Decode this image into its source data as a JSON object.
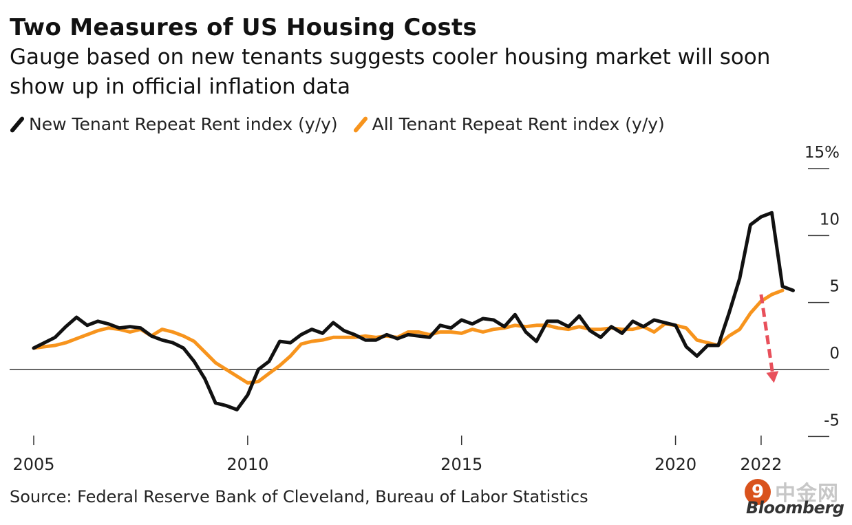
{
  "title": "Two Measures of US Housing Costs",
  "subtitle": "Gauge based on new tenants suggests cooler housing market will soon show up in official inflation data",
  "source": "Source: Federal Reserve Bank of Cleveland, Bureau of Labor Statistics",
  "logo": {
    "cn_text": "中金网",
    "en_text": "Bloomberg",
    "badge_glyph": "9"
  },
  "colors": {
    "new_tenant": "#111111",
    "all_tenant": "#F7941D",
    "arrow": "#E8505B",
    "zero_line": "#333333"
  },
  "chart_data": {
    "type": "line",
    "title": "Two Measures of US Housing Costs",
    "ylabel": "",
    "xlabel": "",
    "xlim": [
      2005,
      2023
    ],
    "ylim": [
      -5,
      15
    ],
    "y_ticks": [
      -5,
      0,
      5,
      10,
      15
    ],
    "y_tick_labels": [
      "-5",
      "0",
      "5",
      "10",
      "15%"
    ],
    "x_ticks": [
      2005,
      2010,
      2015,
      2020,
      2022
    ],
    "x_tick_labels": [
      "2005",
      "2010",
      "2015",
      "2020",
      "2022"
    ],
    "legend": [
      {
        "name": "New Tenant Repeat Rent index (y/y)",
        "color": "#111111"
      },
      {
        "name": "All Tenant Repeat Rent index (y/y)",
        "color": "#F7941D"
      }
    ],
    "series": [
      {
        "name": "New Tenant Repeat Rent index (y/y)",
        "color": "#111111",
        "x": [
          2005.0,
          2005.25,
          2005.5,
          2005.75,
          2006.0,
          2006.25,
          2006.5,
          2006.75,
          2007.0,
          2007.25,
          2007.5,
          2007.75,
          2008.0,
          2008.25,
          2008.5,
          2008.75,
          2009.0,
          2009.25,
          2009.5,
          2009.75,
          2010.0,
          2010.25,
          2010.5,
          2010.75,
          2011.0,
          2011.25,
          2011.5,
          2011.75,
          2012.0,
          2012.25,
          2012.5,
          2012.75,
          2013.0,
          2013.25,
          2013.5,
          2013.75,
          2014.0,
          2014.25,
          2014.5,
          2014.75,
          2015.0,
          2015.25,
          2015.5,
          2015.75,
          2016.0,
          2016.25,
          2016.5,
          2016.75,
          2017.0,
          2017.25,
          2017.5,
          2017.75,
          2018.0,
          2018.25,
          2018.5,
          2018.75,
          2019.0,
          2019.25,
          2019.5,
          2019.75,
          2020.0,
          2020.25,
          2020.5,
          2020.75,
          2021.0,
          2021.25,
          2021.5,
          2021.75,
          2022.0,
          2022.25,
          2022.5,
          2022.75
        ],
        "values": [
          1.6,
          2.0,
          2.4,
          3.2,
          3.9,
          3.3,
          3.6,
          3.4,
          3.1,
          3.2,
          3.1,
          2.5,
          2.2,
          2.0,
          1.6,
          0.6,
          -0.7,
          -2.5,
          -2.7,
          -3.0,
          -1.9,
          0.0,
          0.6,
          2.1,
          2.0,
          2.6,
          3.0,
          2.7,
          3.5,
          2.9,
          2.6,
          2.2,
          2.2,
          2.6,
          2.3,
          2.6,
          2.5,
          2.4,
          3.3,
          3.1,
          3.7,
          3.4,
          3.8,
          3.7,
          3.2,
          4.1,
          2.8,
          2.1,
          3.6,
          3.6,
          3.2,
          4.0,
          2.9,
          2.4,
          3.2,
          2.7,
          3.6,
          3.2,
          3.7,
          3.5,
          3.3,
          1.7,
          1.0,
          1.8,
          1.8,
          4.2,
          6.8,
          10.8,
          11.4,
          11.7,
          6.2,
          5.9
        ]
      },
      {
        "name": "All Tenant Repeat Rent index (y/y)",
        "color": "#F7941D",
        "x": [
          2005.0,
          2005.25,
          2005.5,
          2005.75,
          2006.0,
          2006.25,
          2006.5,
          2006.75,
          2007.0,
          2007.25,
          2007.5,
          2007.75,
          2008.0,
          2008.25,
          2008.5,
          2008.75,
          2009.0,
          2009.25,
          2009.5,
          2009.75,
          2010.0,
          2010.25,
          2010.5,
          2010.75,
          2011.0,
          2011.25,
          2011.5,
          2011.75,
          2012.0,
          2012.25,
          2012.5,
          2012.75,
          2013.0,
          2013.25,
          2013.5,
          2013.75,
          2014.0,
          2014.25,
          2014.5,
          2014.75,
          2015.0,
          2015.25,
          2015.5,
          2015.75,
          2016.0,
          2016.25,
          2016.5,
          2016.75,
          2017.0,
          2017.25,
          2017.5,
          2017.75,
          2018.0,
          2018.25,
          2018.5,
          2018.75,
          2019.0,
          2019.25,
          2019.5,
          2019.75,
          2020.0,
          2020.25,
          2020.5,
          2020.75,
          2021.0,
          2021.25,
          2021.5,
          2021.75,
          2022.0,
          2022.25,
          2022.5
        ],
        "values": [
          1.6,
          1.7,
          1.8,
          2.0,
          2.3,
          2.6,
          2.9,
          3.1,
          3.0,
          2.8,
          3.0,
          2.5,
          3.0,
          2.8,
          2.5,
          2.1,
          1.3,
          0.5,
          0.0,
          -0.5,
          -1.0,
          -0.9,
          -0.3,
          0.3,
          1.0,
          1.9,
          2.1,
          2.2,
          2.4,
          2.4,
          2.4,
          2.5,
          2.4,
          2.5,
          2.4,
          2.8,
          2.8,
          2.6,
          2.8,
          2.8,
          2.7,
          3.0,
          2.8,
          3.0,
          3.1,
          3.3,
          3.2,
          3.3,
          3.3,
          3.1,
          3.0,
          3.2,
          3.0,
          3.0,
          3.1,
          3.0,
          3.0,
          3.2,
          2.8,
          3.4,
          3.3,
          3.1,
          2.2,
          2.0,
          1.8,
          2.5,
          3.0,
          4.2,
          5.1,
          5.6,
          5.9
        ]
      }
    ],
    "annotations": [
      {
        "type": "dashed-arrow",
        "from": [
          2022.0,
          5.6
        ],
        "to": [
          2022.3,
          -1.0
        ],
        "color": "#E8505B"
      }
    ]
  }
}
